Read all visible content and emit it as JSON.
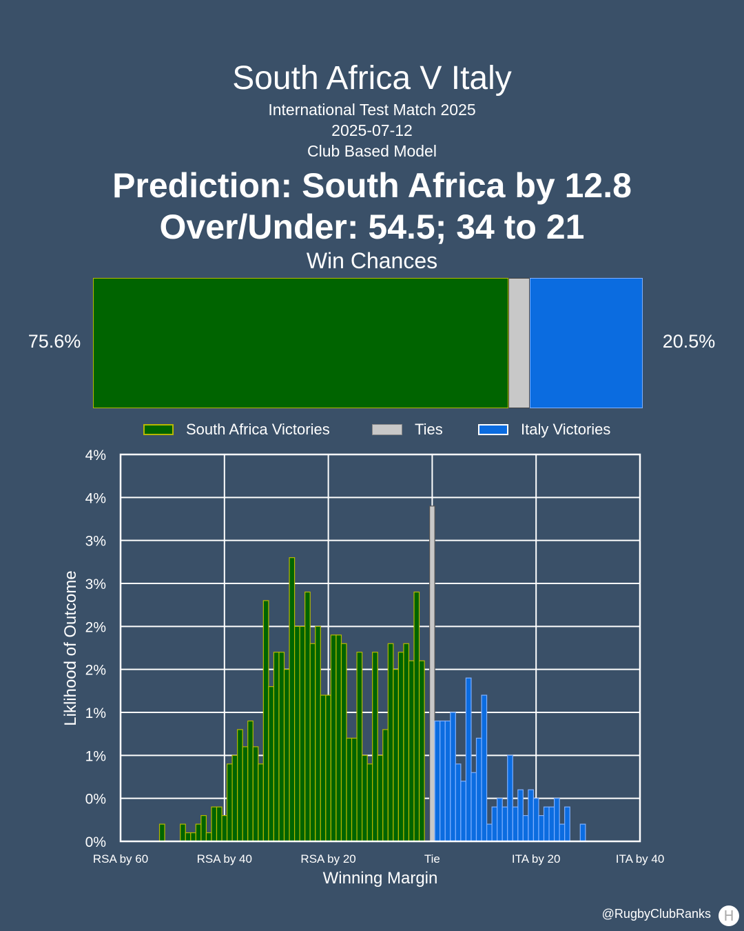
{
  "header": {
    "title": "South Africa V Italy",
    "competition": "International Test Match 2025",
    "date": "2025-07-12",
    "model": "Club Based Model",
    "prediction": "Prediction: South Africa by 12.8",
    "over_under": "Over/Under: 54.5; 34 to 21",
    "win_chances_label": "Win Chances"
  },
  "win_chances": {
    "home_pct": 75.6,
    "tie_pct": 3.9,
    "away_pct": 20.5,
    "home_label": "75.6%",
    "away_label": "20.5%",
    "colors": {
      "home": "#006400",
      "tie": "#c8c8c8",
      "away": "#0b6ce0"
    }
  },
  "legend": {
    "home": "South Africa Victories",
    "tie": "Ties",
    "away": "Italy Victories"
  },
  "chart_data": {
    "type": "bar",
    "xlabel": "Winning Margin",
    "ylabel": "Liklihood of Outcome",
    "xlim": [
      -60,
      40
    ],
    "ylim": [
      0,
      4.5
    ],
    "x_ticks": [
      {
        "value": -60,
        "label": "RSA by 60"
      },
      {
        "value": -40,
        "label": "RSA by 40"
      },
      {
        "value": -20,
        "label": "RSA by 20"
      },
      {
        "value": 0,
        "label": "Tie"
      },
      {
        "value": 20,
        "label": "ITA by 20"
      },
      {
        "value": 40,
        "label": "ITA by 40"
      }
    ],
    "y_ticks": [
      {
        "value": 0,
        "label": "0%"
      },
      {
        "value": 0.5,
        "label": "0%"
      },
      {
        "value": 1.0,
        "label": "1%"
      },
      {
        "value": 1.5,
        "label": "1%"
      },
      {
        "value": 2.0,
        "label": "2%"
      },
      {
        "value": 2.5,
        "label": "2%"
      },
      {
        "value": 3.0,
        "label": "3%"
      },
      {
        "value": 3.5,
        "label": "3%"
      },
      {
        "value": 4.0,
        "label": "4%"
      },
      {
        "value": 4.5,
        "label": "4%"
      }
    ],
    "grid": true,
    "series": [
      {
        "name": "South Africa Victories",
        "color": "#006400",
        "edge": "#b7b800",
        "x": [
          -52,
          -48,
          -47,
          -46,
          -45,
          -44,
          -43,
          -42,
          -41,
          -40,
          -39,
          -38,
          -37,
          -36,
          -35,
          -34,
          -33,
          -32,
          -31,
          -30,
          -29,
          -28,
          -27,
          -26,
          -25,
          -24,
          -23,
          -22,
          -21,
          -20,
          -19,
          -18,
          -17,
          -16,
          -15,
          -14,
          -13,
          -12,
          -11,
          -10,
          -9,
          -8,
          -7,
          -6,
          -5,
          -4,
          -3,
          -2,
          -1
        ],
        "values": [
          0.2,
          0.2,
          0.1,
          0.1,
          0.2,
          0.3,
          0.1,
          0.4,
          0.4,
          0.3,
          0.9,
          1.0,
          1.3,
          1.1,
          1.4,
          1.1,
          0.9,
          2.8,
          1.8,
          2.2,
          2.2,
          2.0,
          3.3,
          2.5,
          2.5,
          2.9,
          2.3,
          2.5,
          1.7,
          1.7,
          2.4,
          2.4,
          2.3,
          1.2,
          1.2,
          2.2,
          1.0,
          0.9,
          2.2,
          1.0,
          1.3,
          2.3,
          2.0,
          2.2,
          2.3,
          2.1,
          2.9,
          2.1,
          0.0
        ]
      },
      {
        "name": "Ties",
        "color": "#c8c8c8",
        "edge": "#555555",
        "x": [
          0
        ],
        "values": [
          3.9
        ]
      },
      {
        "name": "Italy Victories",
        "color": "#0b6ce0",
        "edge": "#7fb0ff",
        "x": [
          1,
          2,
          3,
          4,
          5,
          6,
          7,
          8,
          9,
          10,
          11,
          12,
          13,
          14,
          15,
          16,
          17,
          18,
          19,
          20,
          21,
          22,
          23,
          24,
          25,
          26,
          27,
          28,
          29,
          30
        ],
        "values": [
          1.4,
          1.4,
          1.4,
          1.5,
          0.9,
          0.7,
          1.9,
          0.8,
          1.2,
          1.7,
          0.2,
          0.4,
          0.5,
          0.4,
          1.0,
          0.4,
          0.6,
          0.3,
          0.6,
          0.5,
          0.3,
          0.4,
          0.4,
          0.5,
          0.2,
          0.4,
          0.0,
          0.0,
          0.2,
          0.0
        ]
      }
    ]
  },
  "footer": {
    "handle": "@RugbyClubRanks",
    "logo_icon": "rugby-posts-icon"
  }
}
